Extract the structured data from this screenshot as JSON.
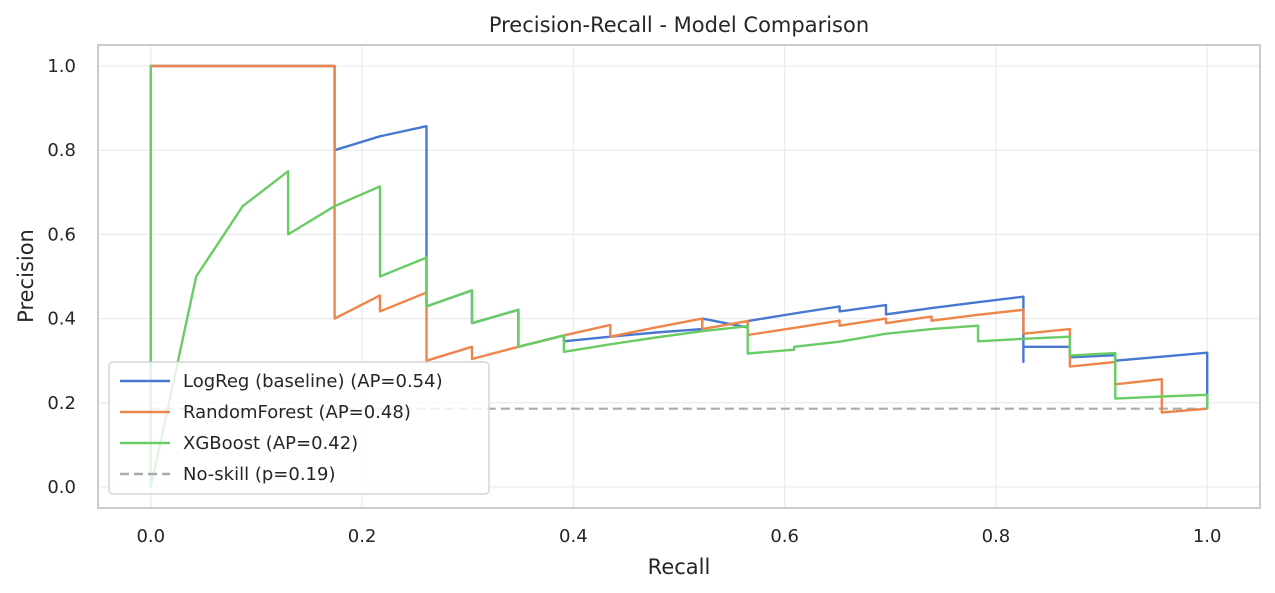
{
  "chart_data": {
    "type": "line",
    "title": "Precision-Recall - Model Comparison",
    "xlabel": "Recall",
    "ylabel": "Precision",
    "xlim": [
      -0.05,
      1.05
    ],
    "ylim": [
      -0.05,
      1.05
    ],
    "xticks": [
      0.0,
      0.2,
      0.4,
      0.6,
      0.8,
      1.0
    ],
    "xtick_labels": [
      "0.0",
      "0.2",
      "0.4",
      "0.6",
      "0.8",
      "1.0"
    ],
    "yticks": [
      0.0,
      0.2,
      0.4,
      0.6,
      0.8,
      1.0
    ],
    "ytick_labels": [
      "0.0",
      "0.2",
      "0.4",
      "0.6",
      "0.8",
      "1.0"
    ],
    "grid": true,
    "legend_position": "lower-left",
    "series": [
      {
        "name": "LogReg (baseline) (AP=0.54)",
        "color": "#4878d0",
        "style": "solid",
        "x": [
          1.0,
          1.0,
          0.913,
          0.913,
          0.87,
          0.87,
          0.826,
          0.826,
          0.826,
          0.783,
          0.739,
          0.696,
          0.696,
          0.652,
          0.652,
          0.609,
          0.565,
          0.565,
          0.522,
          0.522,
          0.478,
          0.435,
          0.391,
          0.391,
          0.348,
          0.348,
          0.304,
          0.304,
          0.261,
          0.261,
          0.217,
          0.174,
          0.174,
          0.13,
          0.087,
          0.043,
          0.0,
          0.0
        ],
        "y": [
          0.186,
          0.319,
          0.3,
          0.313,
          0.308,
          0.333,
          0.333,
          0.297,
          0.452,
          0.439,
          0.425,
          0.41,
          0.432,
          0.417,
          0.429,
          0.412,
          0.394,
          0.379,
          0.4,
          0.375,
          0.367,
          0.357,
          0.346,
          0.36,
          0.333,
          0.421,
          0.389,
          0.467,
          0.429,
          0.857,
          0.833,
          0.8,
          1.0,
          1.0,
          1.0,
          1.0,
          1.0,
          0.0
        ]
      },
      {
        "name": "RandomForest (AP=0.48)",
        "color": "#ee854a",
        "style": "solid",
        "x": [
          1.0,
          0.957,
          0.957,
          0.913,
          0.913,
          0.87,
          0.87,
          0.826,
          0.826,
          0.783,
          0.739,
          0.739,
          0.696,
          0.696,
          0.652,
          0.652,
          0.609,
          0.565,
          0.565,
          0.522,
          0.522,
          0.478,
          0.435,
          0.435,
          0.391,
          0.391,
          0.348,
          0.348,
          0.304,
          0.304,
          0.261,
          0.261,
          0.217,
          0.217,
          0.174,
          0.174,
          0.0,
          0.0
        ],
        "y": [
          0.186,
          0.177,
          0.256,
          0.244,
          0.297,
          0.286,
          0.375,
          0.364,
          0.421,
          0.409,
          0.395,
          0.405,
          0.389,
          0.4,
          0.383,
          0.395,
          0.378,
          0.361,
          0.394,
          0.375,
          0.4,
          0.379,
          0.357,
          0.385,
          0.36,
          0.36,
          0.333,
          0.333,
          0.304,
          0.333,
          0.3,
          0.462,
          0.417,
          0.455,
          0.4,
          1.0,
          1.0,
          0.0
        ]
      },
      {
        "name": "XGBoost (AP=0.42)",
        "color": "#6acc64",
        "style": "solid",
        "x": [
          1.0,
          1.0,
          0.957,
          0.913,
          0.913,
          0.87,
          0.87,
          0.826,
          0.783,
          0.783,
          0.739,
          0.696,
          0.652,
          0.609,
          0.609,
          0.565,
          0.565,
          0.522,
          0.478,
          0.435,
          0.391,
          0.391,
          0.348,
          0.348,
          0.304,
          0.304,
          0.261,
          0.261,
          0.217,
          0.217,
          0.174,
          0.13,
          0.13,
          0.087,
          0.043,
          0.0,
          0.0,
          0.0
        ],
        "y": [
          0.186,
          0.219,
          0.215,
          0.21,
          0.318,
          0.312,
          0.357,
          0.352,
          0.346,
          0.383,
          0.375,
          0.364,
          0.345,
          0.333,
          0.326,
          0.317,
          0.382,
          0.37,
          0.355,
          0.339,
          0.321,
          0.36,
          0.333,
          0.421,
          0.389,
          0.467,
          0.429,
          0.545,
          0.5,
          0.714,
          0.667,
          0.6,
          0.75,
          0.667,
          0.5,
          0.0,
          1.0,
          0.29
        ]
      },
      {
        "name": "No-skill (p=0.19)",
        "color": "#aaaaaa",
        "style": "dashed",
        "x": [
          0.0,
          1.0
        ],
        "y": [
          0.186,
          0.186
        ]
      }
    ]
  }
}
